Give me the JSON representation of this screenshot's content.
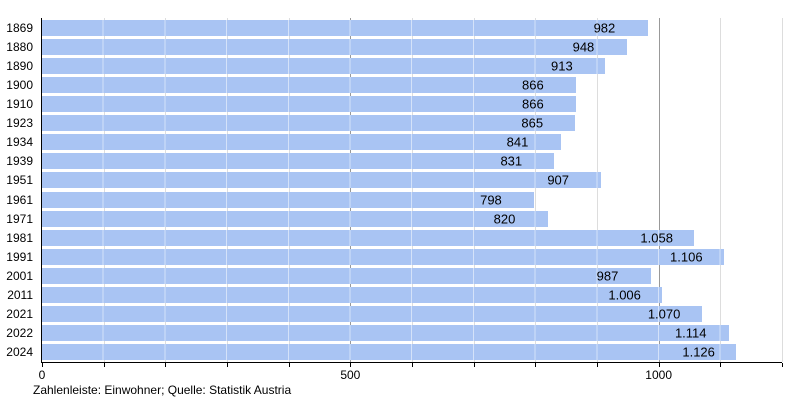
{
  "chart_data": {
    "type": "bar",
    "orientation": "horizontal",
    "title": "",
    "xlabel": "",
    "ylabel": "",
    "categories": [
      "1869",
      "1880",
      "1890",
      "1900",
      "1910",
      "1923",
      "1934",
      "1939",
      "1951",
      "1961",
      "1971",
      "1981",
      "1991",
      "2001",
      "2011",
      "2021",
      "2022",
      "2024"
    ],
    "values": [
      982,
      948,
      913,
      866,
      866,
      865,
      841,
      831,
      907,
      798,
      820,
      1058,
      1106,
      987,
      1006,
      1070,
      1114,
      1126
    ],
    "value_labels": [
      "982",
      "948",
      "913",
      "866",
      "866",
      "865",
      "841",
      "831",
      "907",
      "798",
      "820",
      "1.058",
      "1.106",
      "987",
      "1.006",
      "1.070",
      "1.114",
      "1.126"
    ],
    "xlim": [
      0,
      1200
    ],
    "x_major_ticks": [
      0,
      500,
      1000
    ],
    "x_major_tick_labels": [
      "0",
      "500",
      "1000"
    ],
    "x_minor_tick_step": 100,
    "grid": "vertical-minor-and-major",
    "legend": "none",
    "colors": {
      "bar": "#a9c4f3",
      "value_text": "#000000",
      "grid_minor": "#dddddd",
      "grid_major": "#999999",
      "axis": "#000000",
      "background": "#ffffff"
    }
  },
  "footer": {
    "caption": "Zahlenleiste: Einwohner; Quelle: Statistik Austria"
  }
}
